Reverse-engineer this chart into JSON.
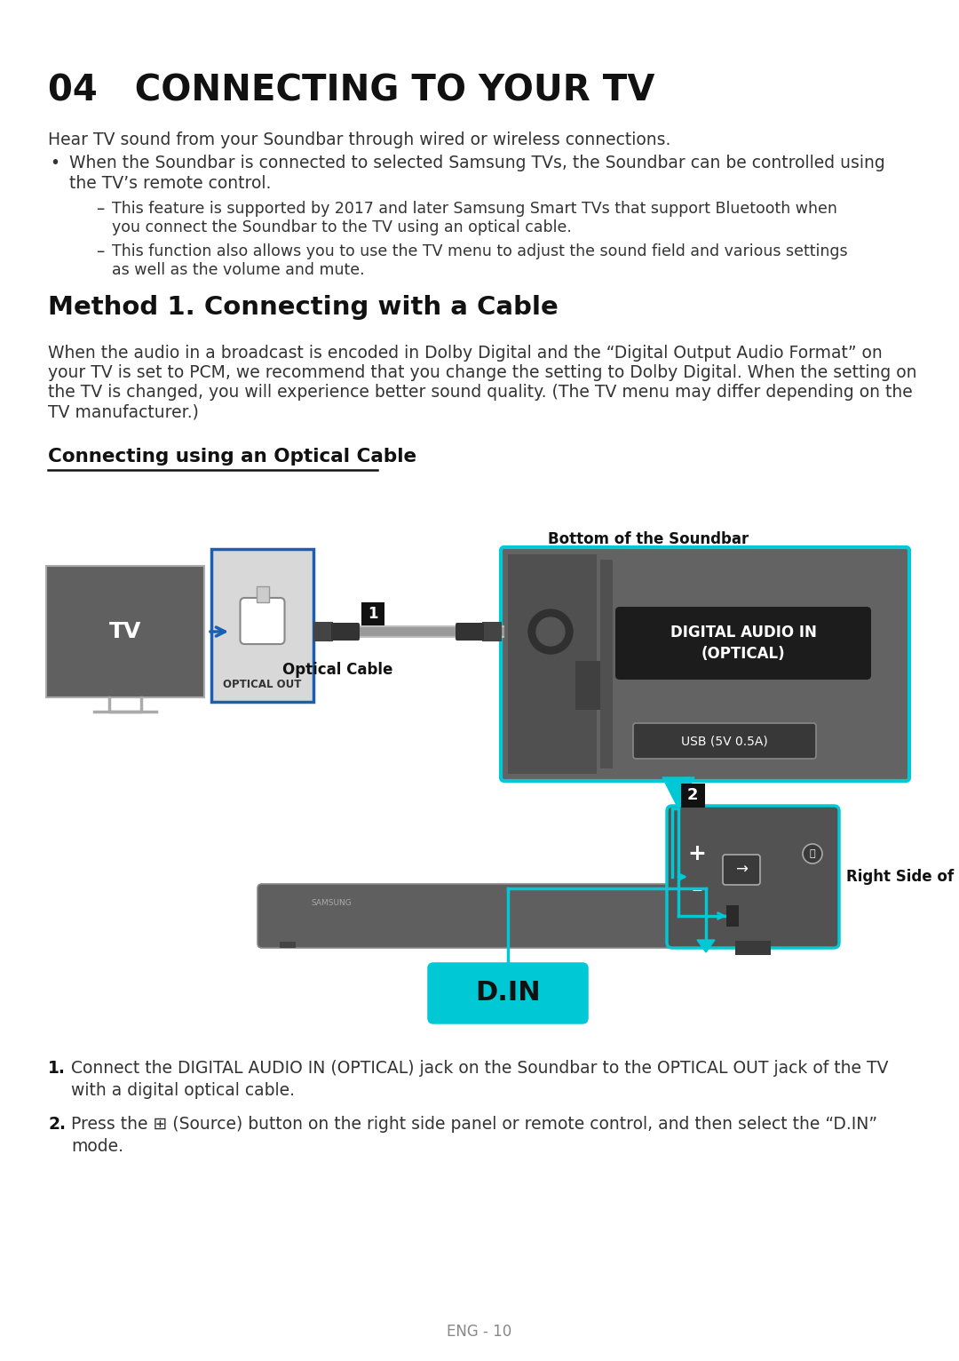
{
  "bg_color": "#ffffff",
  "page_title": "04   CONNECTING TO YOUR TV",
  "intro": "Hear TV sound from your Soundbar through wired or wireless connections.",
  "bullet1_line1": "When the Soundbar is connected to selected Samsung TVs, the Soundbar can be controlled using",
  "bullet1_line2": "the TV’s remote control.",
  "dash1_line1": "This feature is supported by 2017 and later Samsung Smart TVs that support Bluetooth when",
  "dash1_line2": "you connect the Soundbar to the TV using an optical cable.",
  "dash2_line1": "This function also allows you to use the TV menu to adjust the sound field and various settings",
  "dash2_line2": "as well as the volume and mute.",
  "section_title": "Method 1. Connecting with a Cable",
  "section_body_l1": "When the audio in a broadcast is encoded in Dolby Digital and the “Digital Output Audio Format” on",
  "section_body_l2": "your TV is set to PCM, we recommend that you change the setting to Dolby Digital. When the setting on",
  "section_body_l3": "the TV is changed, you will experience better sound quality. (The TV menu may differ depending on the",
  "section_body_l4": "TV manufacturer.)",
  "subsection": "Connecting using an Optical Cable",
  "lbl_bottom": "Bottom of the Soundbar",
  "lbl_optical": "Optical Cable",
  "lbl_opt_out": "OPTICAL OUT",
  "lbl_tv": "TV",
  "lbl_digital": "DIGITAL AUDIO IN\n(OPTICAL)",
  "lbl_usb": "USB (5V 0.5A)",
  "lbl_din": "D.IN",
  "lbl_right": "Right Side of the Soundbar",
  "step1_pre": "Connect the ",
  "step1_bold": "DIGITAL AUDIO IN (OPTICAL)",
  "step1_post": " jack on the Soundbar to the OPTICAL OUT jack of the TV",
  "step1_line2": "with a digital optical cable.",
  "step2_line1": "Press the ⊞ (Source) button on the right side panel or remote control, and then select the “D.IN”",
  "step2_line2": "mode.",
  "footer": "ENG - 10",
  "cyan": "#00c8d4",
  "blue": "#1a5fb4",
  "black": "#111111",
  "text_dark": "#333333",
  "gray_mid": "#888888",
  "panel_bg": "#636363",
  "panel_dark": "#4a4a4a",
  "soundbar_col": "#5f5f5f",
  "tv_col": "#606060"
}
